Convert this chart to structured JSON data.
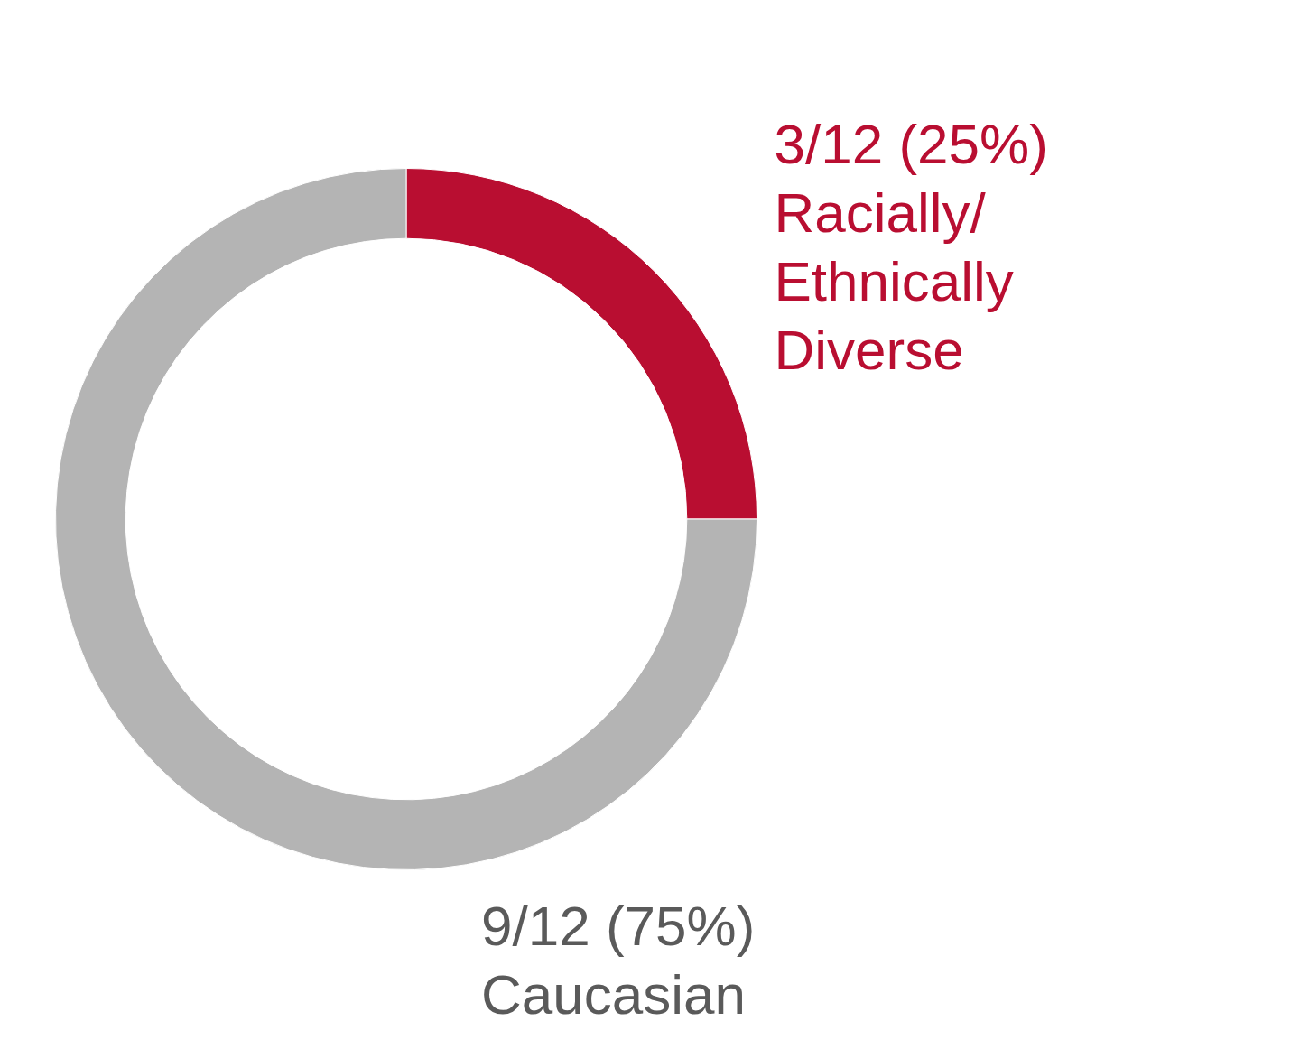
{
  "chart_data": {
    "type": "donut",
    "categories": [
      "Racially/ Ethnically Diverse",
      "Caucasian"
    ],
    "values": [
      3,
      9
    ],
    "colors": [
      "#b90e31",
      "#b4b4b4"
    ],
    "value_labels": [
      "3/12 (25%)",
      "9/12 (75%)"
    ]
  }
}
